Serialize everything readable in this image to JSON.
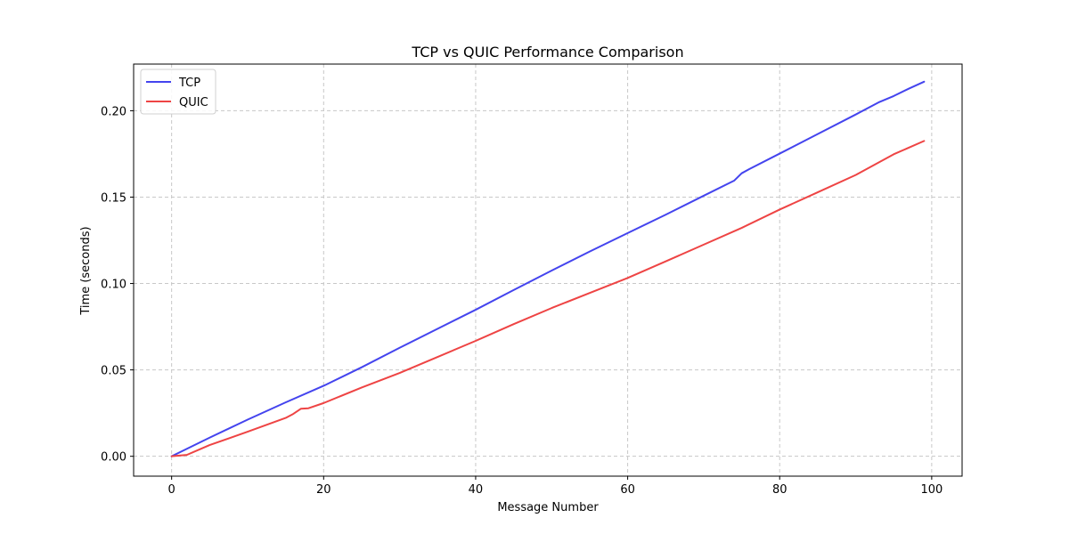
{
  "chart_data": {
    "type": "line",
    "title": "TCP vs QUIC Performance Comparison",
    "xlabel": "Message Number",
    "ylabel": "Time (seconds)",
    "xlim": [
      -5,
      104
    ],
    "ylim": [
      -0.0115,
      0.227
    ],
    "xticks": [
      0,
      20,
      40,
      60,
      80,
      100
    ],
    "xtick_labels": [
      "0",
      "20",
      "40",
      "60",
      "80",
      "100"
    ],
    "yticks": [
      0.0,
      0.05,
      0.1,
      0.15,
      0.2
    ],
    "ytick_labels": [
      "0.00",
      "0.05",
      "0.10",
      "0.15",
      "0.20"
    ],
    "grid": true,
    "legend_position": "upper-left",
    "series": [
      {
        "name": "TCP",
        "color": "#4444ee",
        "x": [
          0,
          5,
          10,
          15,
          20,
          25,
          30,
          35,
          40,
          45,
          50,
          55,
          60,
          65,
          70,
          74,
          75,
          76,
          80,
          85,
          90,
          93,
          95,
          97,
          99
        ],
        "y": [
          0.0,
          0.0108,
          0.0212,
          0.0312,
          0.0408,
          0.0515,
          0.0628,
          0.0738,
          0.0848,
          0.0962,
          0.1075,
          0.1185,
          0.1292,
          0.1398,
          0.1508,
          0.1595,
          0.1638,
          0.1662,
          0.1752,
          0.1865,
          0.1978,
          0.2048,
          0.2085,
          0.2128,
          0.2168
        ]
      },
      {
        "name": "QUIC",
        "color": "#ee4444",
        "x": [
          0,
          2,
          5,
          10,
          15,
          16,
          17,
          18,
          20,
          25,
          30,
          35,
          40,
          45,
          50,
          55,
          60,
          65,
          70,
          75,
          80,
          85,
          90,
          95,
          99
        ],
        "y": [
          0.0,
          0.0008,
          0.0065,
          0.0142,
          0.0222,
          0.0245,
          0.0275,
          0.0278,
          0.0308,
          0.0398,
          0.0482,
          0.0575,
          0.0668,
          0.0765,
          0.0858,
          0.0945,
          0.1032,
          0.1128,
          0.1225,
          0.1322,
          0.1428,
          0.1528,
          0.1628,
          0.1748,
          0.1825
        ]
      }
    ]
  }
}
